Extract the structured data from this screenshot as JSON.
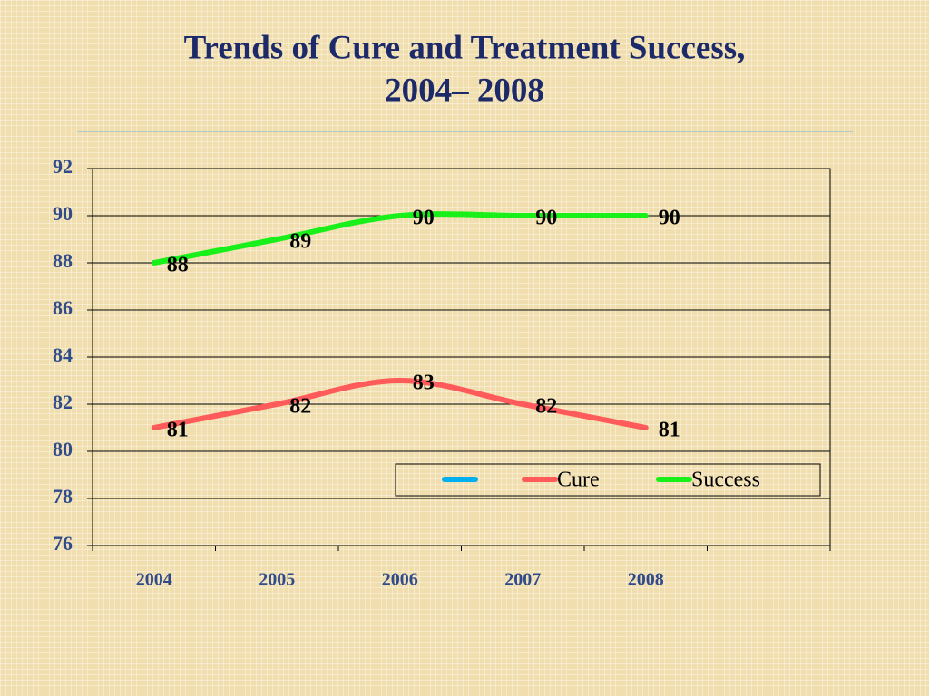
{
  "chart_data": {
    "type": "line",
    "title": [
      "Trends of Cure and Treatment Success,",
      "2004– 2008"
    ],
    "categories": [
      "2004",
      "2005",
      "2006",
      "2007",
      "2008",
      null
    ],
    "series": [
      {
        "name": null,
        "color": "#00b0f0",
        "values": [
          null,
          null,
          null,
          null,
          null,
          null
        ]
      },
      {
        "name": "Cure",
        "color": "#ff5b5b",
        "values": [
          81,
          82,
          83,
          82,
          81,
          null
        ]
      },
      {
        "name": "Success",
        "color": "#19f019",
        "values": [
          88,
          89,
          90,
          90,
          90,
          null
        ]
      }
    ],
    "ylim": [
      76,
      92
    ],
    "yticks": [
      76,
      78,
      80,
      82,
      84,
      86,
      88,
      90,
      92
    ],
    "grid": true,
    "legend": "bottom-right"
  }
}
